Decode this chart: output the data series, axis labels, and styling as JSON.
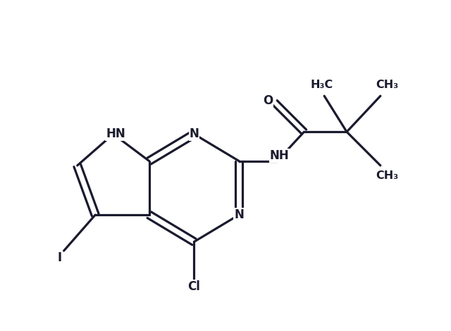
{
  "background_color": "#ffffff",
  "line_color": "#1a1a2e",
  "line_width": 2.3,
  "font_size": 12,
  "fig_width": 6.4,
  "fig_height": 4.7,
  "xlim": [
    0.5,
    10.5
  ],
  "ylim": [
    1.5,
    8.5
  ]
}
